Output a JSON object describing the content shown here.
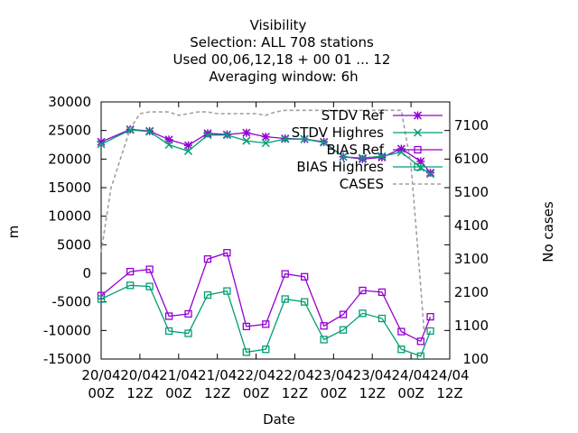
{
  "chart_data": {
    "type": "line",
    "title_lines": [
      "Visibility",
      "Selection: ALL     708 stations",
      "Used  00,06,12,18 + 00 01 ... 12",
      "Averaging window:  6h"
    ],
    "xlabel": "Date",
    "ylabel": "m",
    "y2label": "No cases",
    "ylim": [
      -15000,
      30000
    ],
    "y2lim": [
      100,
      7800
    ],
    "y_ticks": [
      "30000",
      "25000",
      "20000",
      "15000",
      "10000",
      "5000",
      "0",
      "-5000",
      "-10000",
      "-15000"
    ],
    "y_tick_values": [
      30000,
      25000,
      20000,
      15000,
      10000,
      5000,
      0,
      -5000,
      -10000,
      -15000
    ],
    "y2_ticks": [
      "7100",
      "6100",
      "5100",
      "4100",
      "3100",
      "2100",
      "1100",
      "100"
    ],
    "y2_tick_values": [
      7100,
      6100,
      5100,
      4100,
      3100,
      2100,
      1100,
      100
    ],
    "x_ticks": [
      {
        "h": 0,
        "l1": "20/04",
        "l2": "00Z"
      },
      {
        "h": 12,
        "l1": "20/04",
        "l2": "12Z"
      },
      {
        "h": 24,
        "l1": "21/04",
        "l2": "00Z"
      },
      {
        "h": 36,
        "l1": "21/04",
        "l2": "12Z"
      },
      {
        "h": 48,
        "l1": "22/04",
        "l2": "00Z"
      },
      {
        "h": 60,
        "l1": "22/04",
        "l2": "12Z"
      },
      {
        "h": 72,
        "l1": "23/04",
        "l2": "00Z"
      },
      {
        "h": 84,
        "l1": "23/04",
        "l2": "12Z"
      },
      {
        "h": 96,
        "l1": "24/04",
        "l2": "00Z"
      },
      {
        "h": 108,
        "l1": "24/04",
        "l2": "12Z"
      }
    ],
    "x_hours": [
      0,
      9,
      15,
      21,
      27,
      33,
      39,
      45,
      51,
      57,
      63,
      69,
      75,
      81,
      87,
      93,
      99,
      102
    ],
    "series": [
      {
        "name": "STDV Ref",
        "color": "#9400d3",
        "marker": "star",
        "axis": "y",
        "values": [
          23000,
          25200,
          24900,
          23400,
          22400,
          24500,
          24300,
          24600,
          23900,
          23600,
          23500,
          23000,
          20400,
          20000,
          20300,
          21800,
          19600,
          17600
        ]
      },
      {
        "name": "STDV Highres",
        "color": "#009e73",
        "marker": "x",
        "axis": "y",
        "values": [
          22600,
          25100,
          24800,
          22500,
          21400,
          24200,
          24200,
          23200,
          22800,
          23500,
          23500,
          22900,
          20400,
          20200,
          20500,
          21200,
          18500,
          17400
        ]
      },
      {
        "name": "BIAS Ref",
        "color": "#9400d3",
        "marker": "square",
        "axis": "y",
        "values": [
          -3900,
          300,
          700,
          -7500,
          -7100,
          2500,
          3600,
          -9300,
          -8900,
          -100,
          -600,
          -9200,
          -7200,
          -3000,
          -3300,
          -10200,
          -11900,
          -7600
        ]
      },
      {
        "name": "BIAS Highres",
        "color": "#009e73",
        "marker": "square",
        "axis": "y",
        "values": [
          -4500,
          -2100,
          -2300,
          -10100,
          -10500,
          -3800,
          -3100,
          -13800,
          -13300,
          -4500,
          -5000,
          -11600,
          -9900,
          -7000,
          -7900,
          -13300,
          -14500,
          -10100
        ]
      },
      {
        "name": "CASES",
        "color": "#a0a0a0",
        "marker": "none",
        "dashed": true,
        "axis": "y2",
        "x": [
          0,
          3,
          6,
          9,
          12,
          15,
          18,
          21,
          24,
          27,
          30,
          33,
          36,
          39,
          42,
          45,
          48,
          51,
          54,
          57,
          60,
          63,
          66,
          69,
          72,
          75,
          78,
          81,
          84,
          87,
          90,
          93,
          96,
          98,
          100,
          102
        ],
        "values": [
          3300,
          5200,
          6100,
          7000,
          7450,
          7500,
          7500,
          7500,
          7400,
          7450,
          7500,
          7500,
          7450,
          7450,
          7450,
          7450,
          7450,
          7400,
          7500,
          7550,
          7550,
          7550,
          7550,
          7550,
          7550,
          7550,
          7550,
          7550,
          7550,
          7550,
          7550,
          7550,
          5900,
          3500,
          1000,
          800
        ]
      }
    ]
  }
}
